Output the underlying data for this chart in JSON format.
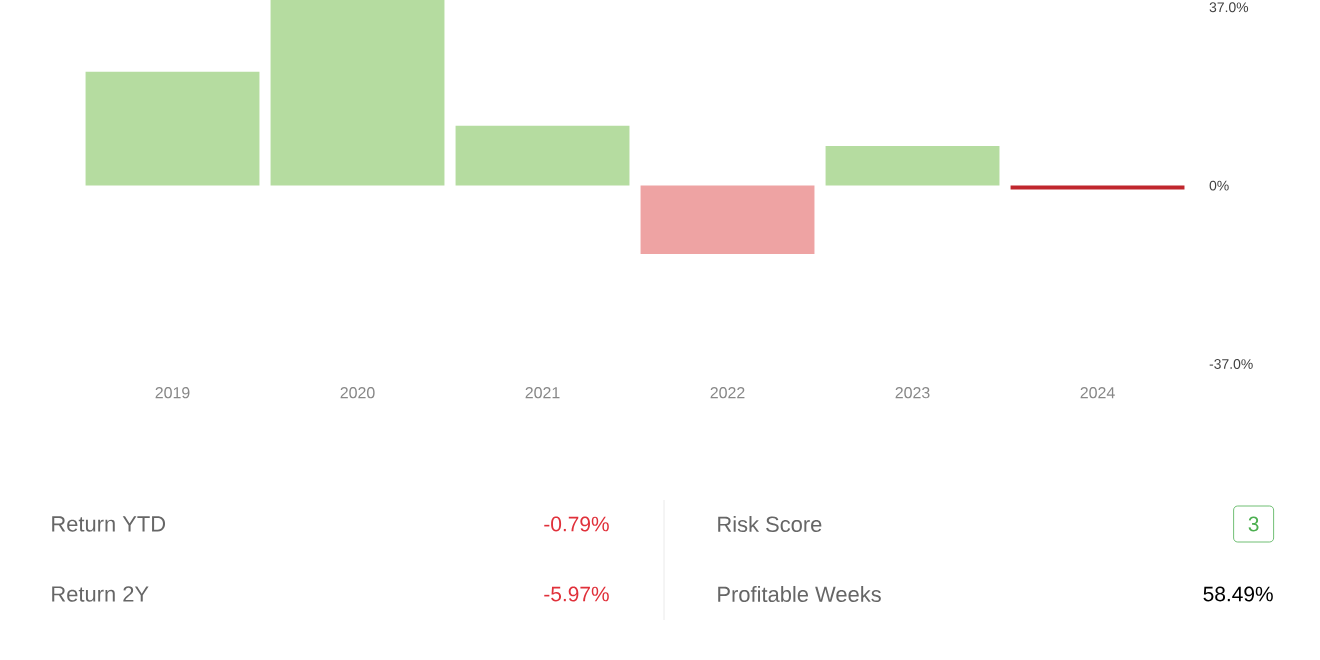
{
  "chart_data": [
    {
      "type": "bar",
      "categories": [
        "2019",
        "2020",
        "2021",
        "2022",
        "2023",
        "2024"
      ],
      "values": [
        23.6,
        38.5,
        12.4,
        -14.2,
        8.2,
        -0.8
      ],
      "colors": [
        "#b5dca0",
        "#b5dca0",
        "#b5dca0",
        "#eea3a3",
        "#b5dca0",
        "#c0262d"
      ],
      "ylim": [
        -37,
        38.5
      ],
      "yticks": [
        {
          "value": 37,
          "label": "37.0%"
        },
        {
          "value": 0,
          "label": "0%"
        },
        {
          "value": -37,
          "label": "-37.0%"
        }
      ],
      "grid": false
    },
    {
      "type": "other",
      "annotations": [
        "Return YTD",
        "-0.79%",
        "Return 2Y",
        "-5.97%",
        "Risk Score",
        "3",
        "Profitable Weeks",
        "58.49%"
      ]
    }
  ]
}
